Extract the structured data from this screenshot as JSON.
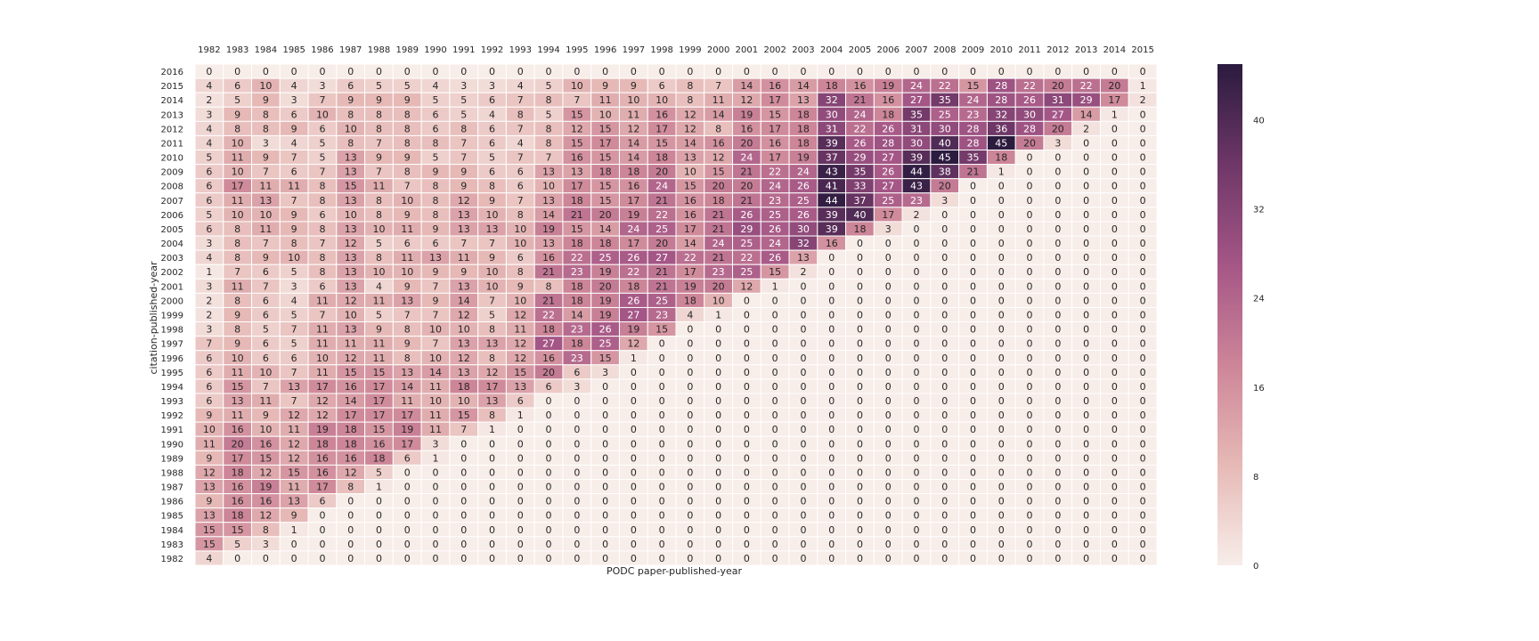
{
  "chart_data": {
    "type": "heatmap",
    "title": "",
    "xlabel": "PODC paper-published-year",
    "ylabel": "citation-published-year",
    "x_categories": [
      "1982",
      "1983",
      "1984",
      "1985",
      "1986",
      "1987",
      "1988",
      "1989",
      "1990",
      "1991",
      "1992",
      "1993",
      "1994",
      "1995",
      "1996",
      "1997",
      "1998",
      "1999",
      "2000",
      "2001",
      "2002",
      "2003",
      "2004",
      "2005",
      "2006",
      "2007",
      "2008",
      "2009",
      "2010",
      "2011",
      "2012",
      "2013",
      "2014",
      "2015"
    ],
    "y_categories": [
      "2016",
      "2015",
      "2014",
      "2013",
      "2012",
      "2011",
      "2010",
      "2009",
      "2008",
      "2007",
      "2006",
      "2005",
      "2004",
      "2003",
      "2002",
      "2001",
      "2000",
      "1999",
      "1998",
      "1997",
      "1996",
      "1995",
      "1994",
      "1993",
      "1992",
      "1991",
      "1990",
      "1989",
      "1988",
      "1987",
      "1986",
      "1985",
      "1984",
      "1983",
      "1982"
    ],
    "values": [
      [
        0,
        0,
        0,
        0,
        0,
        0,
        0,
        0,
        0,
        0,
        0,
        0,
        0,
        0,
        0,
        0,
        0,
        0,
        0,
        0,
        0,
        0,
        0,
        0,
        0,
        0,
        0,
        0,
        0,
        0,
        0,
        0,
        0,
        0
      ],
      [
        4,
        6,
        10,
        4,
        3,
        6,
        5,
        5,
        4,
        3,
        3,
        4,
        5,
        10,
        9,
        9,
        6,
        8,
        7,
        14,
        16,
        14,
        18,
        16,
        19,
        24,
        22,
        15,
        28,
        22,
        20,
        22,
        20,
        1
      ],
      [
        2,
        5,
        9,
        3,
        7,
        9,
        9,
        9,
        5,
        5,
        6,
        7,
        8,
        7,
        11,
        10,
        10,
        8,
        11,
        12,
        17,
        13,
        32,
        21,
        16,
        27,
        35,
        24,
        28,
        26,
        31,
        29,
        17,
        2
      ],
      [
        3,
        9,
        8,
        6,
        10,
        8,
        8,
        8,
        6,
        5,
        4,
        8,
        5,
        15,
        10,
        11,
        16,
        12,
        14,
        19,
        15,
        18,
        30,
        24,
        18,
        35,
        25,
        23,
        32,
        30,
        27,
        14,
        1,
        0
      ],
      [
        4,
        8,
        8,
        9,
        6,
        10,
        8,
        8,
        6,
        8,
        6,
        7,
        8,
        12,
        15,
        12,
        17,
        12,
        8,
        16,
        17,
        18,
        31,
        22,
        26,
        31,
        30,
        28,
        36,
        28,
        20,
        2,
        0,
        0
      ],
      [
        4,
        10,
        3,
        4,
        5,
        8,
        7,
        8,
        8,
        7,
        6,
        4,
        8,
        15,
        17,
        14,
        15,
        14,
        16,
        20,
        16,
        18,
        39,
        26,
        28,
        30,
        40,
        28,
        45,
        20,
        3,
        0,
        0,
        0
      ],
      [
        5,
        11,
        9,
        7,
        5,
        13,
        9,
        9,
        5,
        7,
        5,
        7,
        7,
        16,
        15,
        14,
        18,
        13,
        12,
        24,
        17,
        19,
        37,
        29,
        27,
        39,
        45,
        35,
        18,
        0,
        0,
        0,
        0,
        0
      ],
      [
        6,
        10,
        7,
        6,
        7,
        13,
        7,
        8,
        9,
        9,
        6,
        6,
        13,
        13,
        18,
        18,
        20,
        10,
        15,
        21,
        22,
        24,
        43,
        35,
        26,
        44,
        38,
        21,
        1,
        0,
        0,
        0,
        0,
        0
      ],
      [
        6,
        17,
        11,
        11,
        8,
        15,
        11,
        7,
        8,
        9,
        8,
        6,
        10,
        17,
        15,
        16,
        24,
        15,
        20,
        20,
        24,
        26,
        41,
        33,
        27,
        43,
        20,
        0,
        0,
        0,
        0,
        0,
        0,
        0
      ],
      [
        6,
        11,
        13,
        7,
        8,
        13,
        8,
        10,
        8,
        12,
        9,
        7,
        13,
        18,
        15,
        17,
        21,
        16,
        18,
        21,
        23,
        25,
        44,
        37,
        25,
        23,
        3,
        0,
        0,
        0,
        0,
        0,
        0,
        0
      ],
      [
        5,
        10,
        10,
        9,
        6,
        10,
        8,
        9,
        8,
        13,
        10,
        8,
        14,
        21,
        20,
        19,
        22,
        16,
        21,
        26,
        25,
        26,
        39,
        40,
        17,
        2,
        0,
        0,
        0,
        0,
        0,
        0,
        0,
        0
      ],
      [
        6,
        8,
        11,
        9,
        8,
        13,
        10,
        11,
        9,
        13,
        13,
        10,
        19,
        15,
        14,
        24,
        25,
        17,
        21,
        29,
        26,
        30,
        39,
        18,
        3,
        0,
        0,
        0,
        0,
        0,
        0,
        0,
        0,
        0
      ],
      [
        3,
        8,
        7,
        8,
        7,
        12,
        5,
        6,
        6,
        7,
        7,
        10,
        13,
        18,
        18,
        17,
        20,
        14,
        24,
        25,
        24,
        32,
        16,
        0,
        0,
        0,
        0,
        0,
        0,
        0,
        0,
        0,
        0,
        0
      ],
      [
        4,
        8,
        9,
        10,
        8,
        13,
        8,
        11,
        13,
        11,
        9,
        6,
        16,
        22,
        25,
        26,
        27,
        22,
        21,
        22,
        26,
        13,
        0,
        0,
        0,
        0,
        0,
        0,
        0,
        0,
        0,
        0,
        0,
        0
      ],
      [
        1,
        7,
        6,
        5,
        8,
        13,
        10,
        10,
        9,
        9,
        10,
        8,
        21,
        23,
        19,
        22,
        21,
        17,
        23,
        25,
        15,
        2,
        0,
        0,
        0,
        0,
        0,
        0,
        0,
        0,
        0,
        0,
        0,
        0
      ],
      [
        3,
        11,
        7,
        3,
        6,
        13,
        4,
        9,
        7,
        13,
        10,
        9,
        8,
        18,
        20,
        18,
        21,
        19,
        20,
        12,
        1,
        0,
        0,
        0,
        0,
        0,
        0,
        0,
        0,
        0,
        0,
        0,
        0,
        0
      ],
      [
        2,
        8,
        6,
        4,
        11,
        12,
        11,
        13,
        9,
        14,
        7,
        10,
        21,
        18,
        19,
        26,
        25,
        18,
        10,
        0,
        0,
        0,
        0,
        0,
        0,
        0,
        0,
        0,
        0,
        0,
        0,
        0,
        0,
        0
      ],
      [
        2,
        9,
        6,
        5,
        7,
        10,
        5,
        7,
        7,
        12,
        5,
        12,
        22,
        14,
        19,
        27,
        23,
        4,
        1,
        0,
        0,
        0,
        0,
        0,
        0,
        0,
        0,
        0,
        0,
        0,
        0,
        0,
        0,
        0
      ],
      [
        3,
        8,
        5,
        7,
        11,
        13,
        9,
        8,
        10,
        10,
        8,
        11,
        18,
        23,
        26,
        19,
        15,
        0,
        0,
        0,
        0,
        0,
        0,
        0,
        0,
        0,
        0,
        0,
        0,
        0,
        0,
        0,
        0,
        0
      ],
      [
        7,
        9,
        6,
        5,
        11,
        11,
        11,
        9,
        7,
        13,
        13,
        12,
        27,
        18,
        25,
        12,
        0,
        0,
        0,
        0,
        0,
        0,
        0,
        0,
        0,
        0,
        0,
        0,
        0,
        0,
        0,
        0,
        0,
        0
      ],
      [
        6,
        10,
        6,
        6,
        10,
        12,
        11,
        8,
        10,
        12,
        8,
        12,
        16,
        23,
        15,
        1,
        0,
        0,
        0,
        0,
        0,
        0,
        0,
        0,
        0,
        0,
        0,
        0,
        0,
        0,
        0,
        0,
        0,
        0
      ],
      [
        6,
        11,
        10,
        7,
        11,
        15,
        15,
        13,
        14,
        13,
        12,
        15,
        20,
        6,
        3,
        0,
        0,
        0,
        0,
        0,
        0,
        0,
        0,
        0,
        0,
        0,
        0,
        0,
        0,
        0,
        0,
        0,
        0,
        0
      ],
      [
        6,
        15,
        7,
        13,
        17,
        16,
        17,
        14,
        11,
        18,
        17,
        13,
        6,
        3,
        0,
        0,
        0,
        0,
        0,
        0,
        0,
        0,
        0,
        0,
        0,
        0,
        0,
        0,
        0,
        0,
        0,
        0,
        0,
        0
      ],
      [
        6,
        13,
        11,
        7,
        12,
        14,
        17,
        11,
        10,
        10,
        13,
        6,
        0,
        0,
        0,
        0,
        0,
        0,
        0,
        0,
        0,
        0,
        0,
        0,
        0,
        0,
        0,
        0,
        0,
        0,
        0,
        0,
        0,
        0
      ],
      [
        9,
        11,
        9,
        12,
        12,
        17,
        17,
        17,
        11,
        15,
        8,
        1,
        0,
        0,
        0,
        0,
        0,
        0,
        0,
        0,
        0,
        0,
        0,
        0,
        0,
        0,
        0,
        0,
        0,
        0,
        0,
        0,
        0,
        0
      ],
      [
        10,
        16,
        10,
        11,
        19,
        18,
        15,
        19,
        11,
        7,
        1,
        0,
        0,
        0,
        0,
        0,
        0,
        0,
        0,
        0,
        0,
        0,
        0,
        0,
        0,
        0,
        0,
        0,
        0,
        0,
        0,
        0,
        0,
        0
      ],
      [
        11,
        20,
        16,
        12,
        18,
        18,
        16,
        17,
        3,
        0,
        0,
        0,
        0,
        0,
        0,
        0,
        0,
        0,
        0,
        0,
        0,
        0,
        0,
        0,
        0,
        0,
        0,
        0,
        0,
        0,
        0,
        0,
        0,
        0
      ],
      [
        9,
        17,
        15,
        12,
        16,
        16,
        18,
        6,
        1,
        0,
        0,
        0,
        0,
        0,
        0,
        0,
        0,
        0,
        0,
        0,
        0,
        0,
        0,
        0,
        0,
        0,
        0,
        0,
        0,
        0,
        0,
        0,
        0,
        0
      ],
      [
        12,
        18,
        12,
        15,
        16,
        12,
        5,
        0,
        0,
        0,
        0,
        0,
        0,
        0,
        0,
        0,
        0,
        0,
        0,
        0,
        0,
        0,
        0,
        0,
        0,
        0,
        0,
        0,
        0,
        0,
        0,
        0,
        0,
        0
      ],
      [
        13,
        16,
        19,
        11,
        17,
        8,
        1,
        0,
        0,
        0,
        0,
        0,
        0,
        0,
        0,
        0,
        0,
        0,
        0,
        0,
        0,
        0,
        0,
        0,
        0,
        0,
        0,
        0,
        0,
        0,
        0,
        0,
        0,
        0
      ],
      [
        9,
        16,
        16,
        13,
        6,
        0,
        0,
        0,
        0,
        0,
        0,
        0,
        0,
        0,
        0,
        0,
        0,
        0,
        0,
        0,
        0,
        0,
        0,
        0,
        0,
        0,
        0,
        0,
        0,
        0,
        0,
        0,
        0,
        0
      ],
      [
        13,
        18,
        12,
        9,
        0,
        0,
        0,
        0,
        0,
        0,
        0,
        0,
        0,
        0,
        0,
        0,
        0,
        0,
        0,
        0,
        0,
        0,
        0,
        0,
        0,
        0,
        0,
        0,
        0,
        0,
        0,
        0,
        0,
        0
      ],
      [
        15,
        15,
        8,
        1,
        0,
        0,
        0,
        0,
        0,
        0,
        0,
        0,
        0,
        0,
        0,
        0,
        0,
        0,
        0,
        0,
        0,
        0,
        0,
        0,
        0,
        0,
        0,
        0,
        0,
        0,
        0,
        0,
        0,
        0
      ],
      [
        15,
        5,
        3,
        0,
        0,
        0,
        0,
        0,
        0,
        0,
        0,
        0,
        0,
        0,
        0,
        0,
        0,
        0,
        0,
        0,
        0,
        0,
        0,
        0,
        0,
        0,
        0,
        0,
        0,
        0,
        0,
        0,
        0,
        0
      ],
      [
        4,
        0,
        0,
        0,
        0,
        0,
        0,
        0,
        0,
        0,
        0,
        0,
        0,
        0,
        0,
        0,
        0,
        0,
        0,
        0,
        0,
        0,
        0,
        0,
        0,
        0,
        0,
        0,
        0,
        0,
        0,
        0,
        0,
        0
      ]
    ],
    "colorbar": {
      "min": 0,
      "max": 45,
      "ticks": [
        0,
        8,
        16,
        24,
        32,
        40
      ],
      "tick_labels": [
        "0",
        "8",
        "16",
        "24",
        "32",
        "40"
      ],
      "colors": [
        "#f7ede9",
        "#e6b9b6",
        "#cd8598",
        "#a45686",
        "#6e3767",
        "#2b1b3e"
      ]
    },
    "x_axis_position": "top",
    "grid": false,
    "cell_border_color": "#ffffff"
  }
}
